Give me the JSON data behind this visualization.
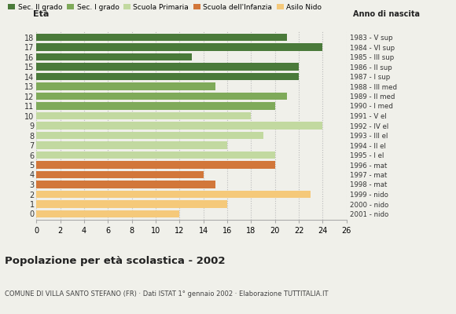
{
  "ages": [
    0,
    1,
    2,
    3,
    4,
    5,
    6,
    7,
    8,
    9,
    10,
    11,
    12,
    13,
    14,
    15,
    16,
    17,
    18
  ],
  "values": [
    12,
    16,
    23,
    15,
    14,
    20,
    20,
    16,
    19,
    24,
    18,
    20,
    21,
    15,
    22,
    22,
    13,
    24,
    21
  ],
  "year_labels": [
    "2001 - nido",
    "2000 - nido",
    "1999 - nido",
    "1998 - mat",
    "1997 - mat",
    "1996 - mat",
    "1995 - I el",
    "1994 - II el",
    "1993 - III el",
    "1992 - IV el",
    "1991 - V el",
    "1990 - I med",
    "1989 - II med",
    "1988 - III med",
    "1987 - I sup",
    "1986 - II sup",
    "1985 - III sup",
    "1984 - VI sup",
    "1983 - V sup"
  ],
  "bar_colors": [
    "#f5c97a",
    "#f5c97a",
    "#f5c97a",
    "#d2773a",
    "#d2773a",
    "#d2773a",
    "#c2d9a0",
    "#c2d9a0",
    "#c2d9a0",
    "#c2d9a0",
    "#c2d9a0",
    "#7faa5a",
    "#7faa5a",
    "#7faa5a",
    "#4a7a3a",
    "#4a7a3a",
    "#4a7a3a",
    "#4a7a3a",
    "#4a7a3a"
  ],
  "legend_labels": [
    "Sec. II grado",
    "Sec. I grado",
    "Scuola Primaria",
    "Scuola dell'Infanzia",
    "Asilo Nido"
  ],
  "legend_colors": [
    "#4a7a3a",
    "#7faa5a",
    "#c2d9a0",
    "#d2773a",
    "#f5c97a"
  ],
  "title": "Popolazione per età scolastica - 2002",
  "subtitle": "COMUNE DI VILLA SANTO STEFANO (FR) · Dati ISTAT 1° gennaio 2002 · Elaborazione TUTTITALIA.IT",
  "xlabel_eta": "Età",
  "xlabel_anno": "Anno di nascita",
  "xlim": [
    0,
    26
  ],
  "xticks": [
    0,
    2,
    4,
    6,
    8,
    10,
    12,
    14,
    16,
    18,
    20,
    22,
    24,
    26
  ],
  "grid_color": "#bbbbbb",
  "bg_color": "#f0f0ea"
}
